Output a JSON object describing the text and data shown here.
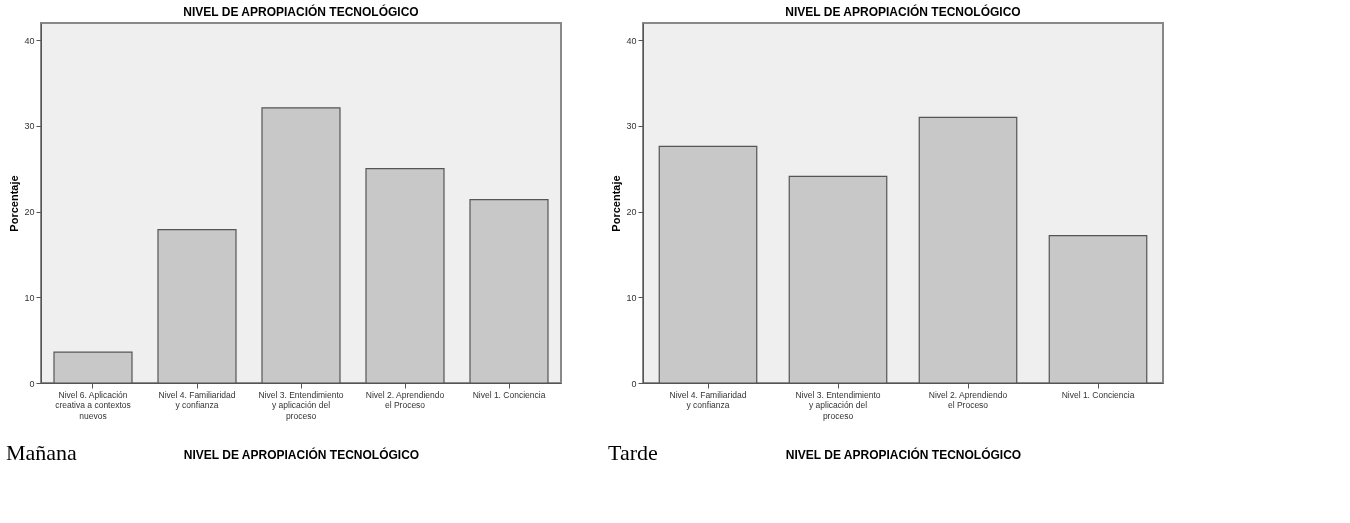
{
  "chart_data": [
    {
      "type": "bar",
      "title": "NIVEL DE APROPIACIÓN TECNOLÓGICO",
      "xlabel": "NIVEL DE APROPIACIÓN TECNOLÓGICO",
      "ylabel": "Porcentaje",
      "categories": [
        "Nivel 6. Aplicación creativa a contextos nuevos",
        "Nivel 4. Familiaridad y confianza",
        "Nivel 3. Entendimiento y aplicación del proceso",
        "Nivel 2. Aprendiendo el Proceso",
        "Nivel 1. Conciencia"
      ],
      "values": [
        3.6,
        17.9,
        32.1,
        25.0,
        21.4
      ],
      "color": "#c8c8c8",
      "ylim": [
        0,
        42
      ],
      "yticks": [
        0,
        10,
        20,
        30,
        40
      ],
      "grid": false,
      "annotations": [
        "Mañana"
      ]
    },
    {
      "type": "bar",
      "title": "NIVEL DE APROPIACIÓN TECNOLÓGICO",
      "xlabel": "NIVEL DE APROPIACIÓN TECNOLÓGICO",
      "ylabel": "Porcentaje",
      "categories": [
        "Nivel 4. Familiaridad y confianza",
        "Nivel 3. Entendimiento y aplicación del proceso",
        "Nivel 2. Aprendiendo el Proceso",
        "Nivel 1. Conciencia"
      ],
      "values": [
        27.6,
        24.1,
        31.0,
        17.2
      ],
      "color": "#c8c8c8",
      "ylim": [
        0,
        42
      ],
      "yticks": [
        0,
        10,
        20,
        30,
        40
      ],
      "grid": false,
      "annotations": [
        "Tarde"
      ]
    }
  ]
}
